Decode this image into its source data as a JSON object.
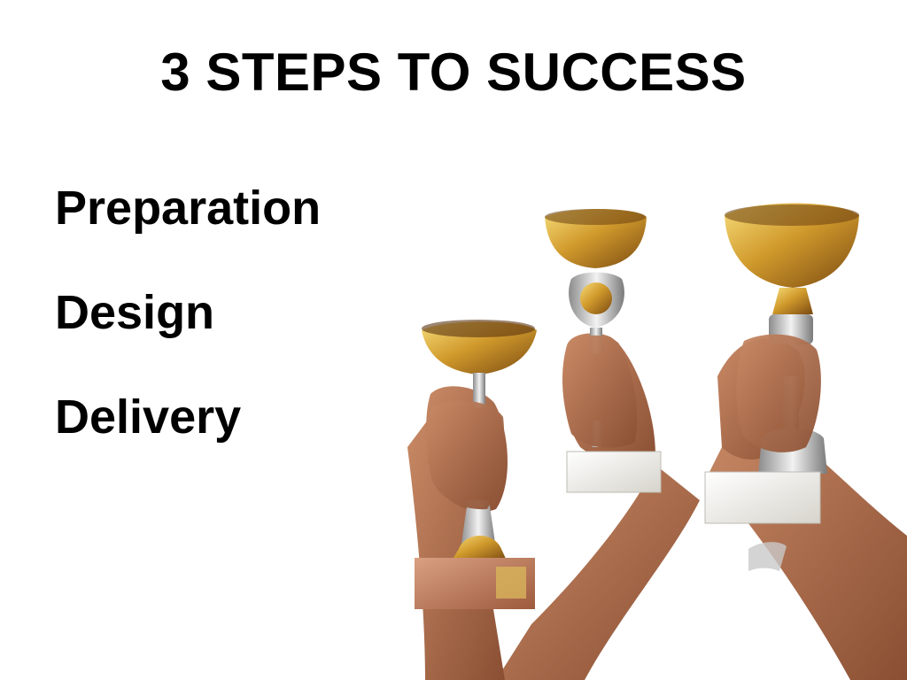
{
  "slide": {
    "title": "3 STEPS TO SUCCESS",
    "steps": [
      "Preparation",
      "Design",
      "Delivery"
    ]
  },
  "image": {
    "subject": "three-arms-holding-trophies"
  },
  "colors": {
    "background": "#ffffff",
    "text": "#000000",
    "gold": "#d4a437",
    "skin": "#a9694a",
    "marble": "#ecebe6"
  }
}
